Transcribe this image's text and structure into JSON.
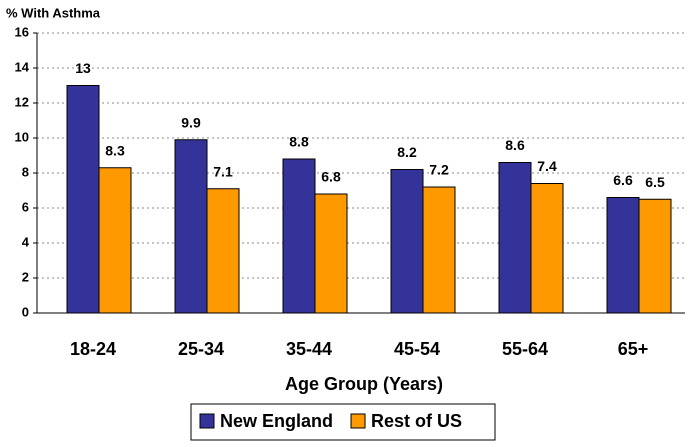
{
  "chart_data": {
    "type": "bar",
    "ylabel": "% With Asthma",
    "xlabel": "Age Group (Years)",
    "categories": [
      "18-24",
      "25-34",
      "35-44",
      "45-54",
      "55-64",
      "65+"
    ],
    "series": [
      {
        "name": "New England",
        "color": "#333399",
        "values": [
          13,
          9.9,
          8.8,
          8.2,
          8.6,
          6.6
        ]
      },
      {
        "name": "Rest of US",
        "color": "#FF9900",
        "values": [
          8.3,
          7.1,
          6.8,
          7.2,
          7.4,
          6.5
        ]
      }
    ],
    "ylim": [
      0,
      16
    ],
    "yticks": [
      0,
      2,
      4,
      6,
      8,
      10,
      12,
      14,
      16
    ],
    "grid": true,
    "legend": "bottom"
  }
}
